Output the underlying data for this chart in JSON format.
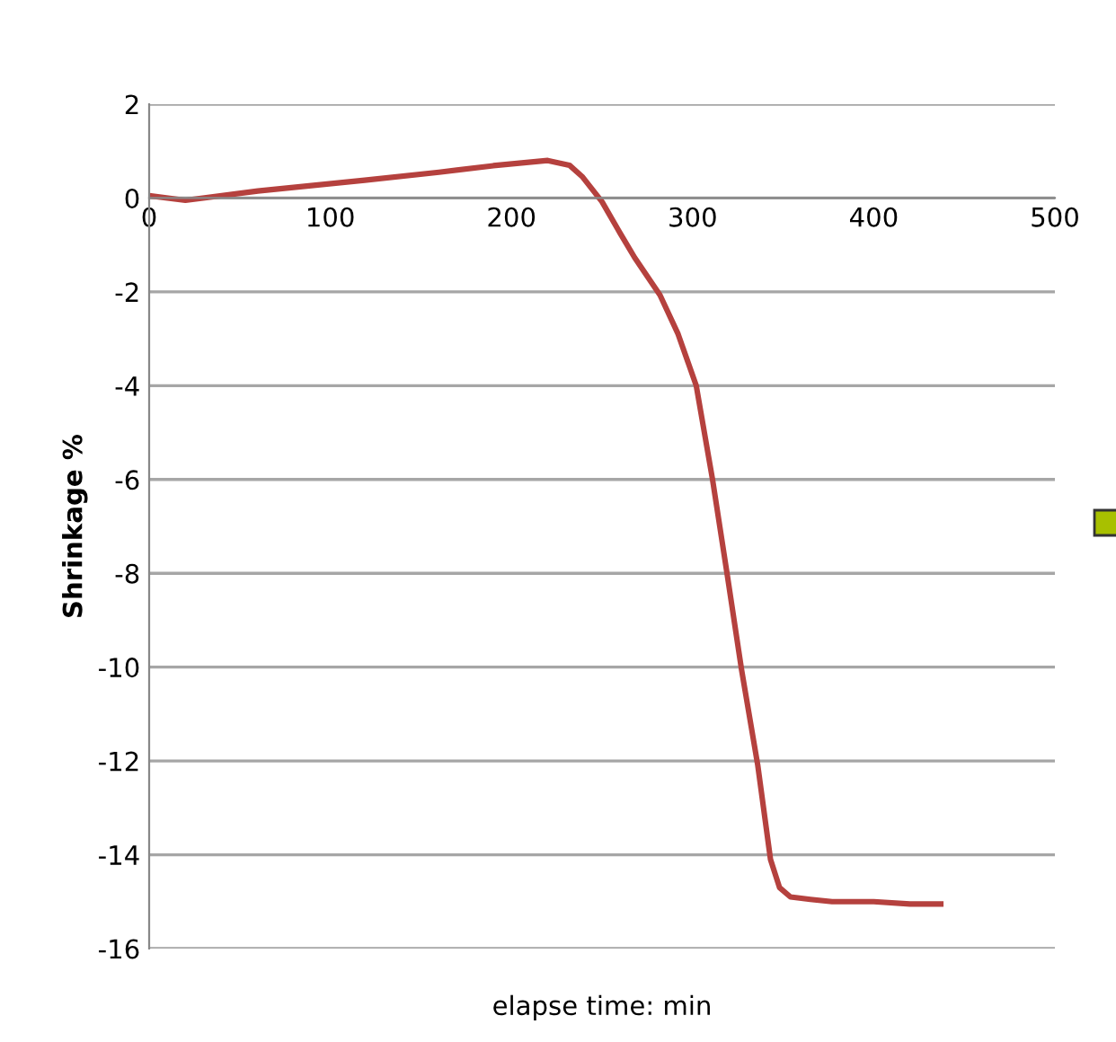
{
  "chart_data": {
    "type": "line",
    "xlabel": "elapse time: min",
    "ylabel": "Shrinkage %",
    "series": [
      {
        "color": "#b5413e",
        "x": [
          0,
          20,
          60,
          119,
          160,
          190,
          220,
          232,
          239,
          250,
          260,
          268,
          282,
          292,
          302,
          311,
          319,
          327,
          336,
          343,
          348,
          354,
          365,
          377,
          400,
          420,
          437
        ],
        "values": [
          0.05,
          -0.05,
          0.15,
          0.38,
          0.55,
          0.69,
          0.8,
          0.7,
          0.46,
          -0.08,
          -0.75,
          -1.27,
          -2.07,
          -2.9,
          -4.0,
          -6.0,
          -8.0,
          -10.05,
          -12.1,
          -14.1,
          -14.7,
          -14.9,
          -14.95,
          -15.0,
          -15.0,
          -15.05,
          -15.05
        ]
      }
    ],
    "xlim": [
      0,
      500
    ],
    "xticks": [
      0,
      100,
      200,
      300,
      400,
      500
    ],
    "ylim": [
      -16,
      2
    ],
    "yticks": [
      -16,
      -14,
      -12,
      -10,
      -8,
      -6,
      -4,
      -2,
      0,
      2
    ],
    "grid": "y",
    "marker": "none",
    "line_style": "solid",
    "legend": false
  }
}
